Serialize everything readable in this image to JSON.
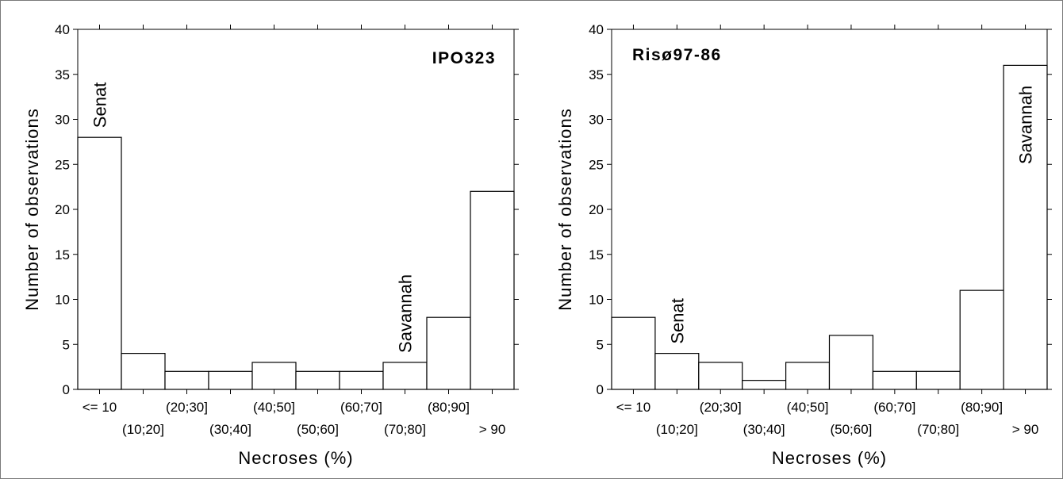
{
  "chart_data": [
    {
      "type": "bar",
      "title": "IPO323",
      "xlabel": "Necroses (%)",
      "ylabel": "Number of observations",
      "ylim": [
        0,
        40
      ],
      "yticks": [
        0,
        5,
        10,
        15,
        20,
        25,
        30,
        35,
        40
      ],
      "categories": [
        "<= 10",
        "(10;20]",
        "(20;30]",
        "(30;40]",
        "(40;50]",
        "(50;60]",
        "(60;70]",
        "(70;80]",
        "(80;90]",
        "> 90"
      ],
      "values": [
        28,
        4,
        2,
        2,
        3,
        2,
        2,
        3,
        8,
        22
      ],
      "annotations": [
        {
          "text": "Senat",
          "category": "<= 10",
          "orientation": "vertical"
        },
        {
          "text": "Savannah",
          "category": "(70;80]",
          "orientation": "vertical"
        }
      ],
      "grid": false,
      "legend": "none"
    },
    {
      "type": "bar",
      "title": "Risø97-86",
      "xlabel": "Necroses (%)",
      "ylabel": "Number of observations",
      "ylim": [
        0,
        40
      ],
      "yticks": [
        0,
        5,
        10,
        15,
        20,
        25,
        30,
        35,
        40
      ],
      "categories": [
        "<= 10",
        "(10;20]",
        "(20;30]",
        "(30;40]",
        "(40;50]",
        "(50;60]",
        "(60;70]",
        "(70;80]",
        "(80;90]",
        "> 90"
      ],
      "values": [
        8,
        4,
        3,
        1,
        3,
        6,
        2,
        2,
        11,
        36
      ],
      "annotations": [
        {
          "text": "Senat",
          "category": "(10;20]",
          "orientation": "vertical"
        },
        {
          "text": "Savannah",
          "category": "> 90",
          "orientation": "vertical"
        }
      ],
      "grid": false,
      "legend": "none"
    }
  ]
}
